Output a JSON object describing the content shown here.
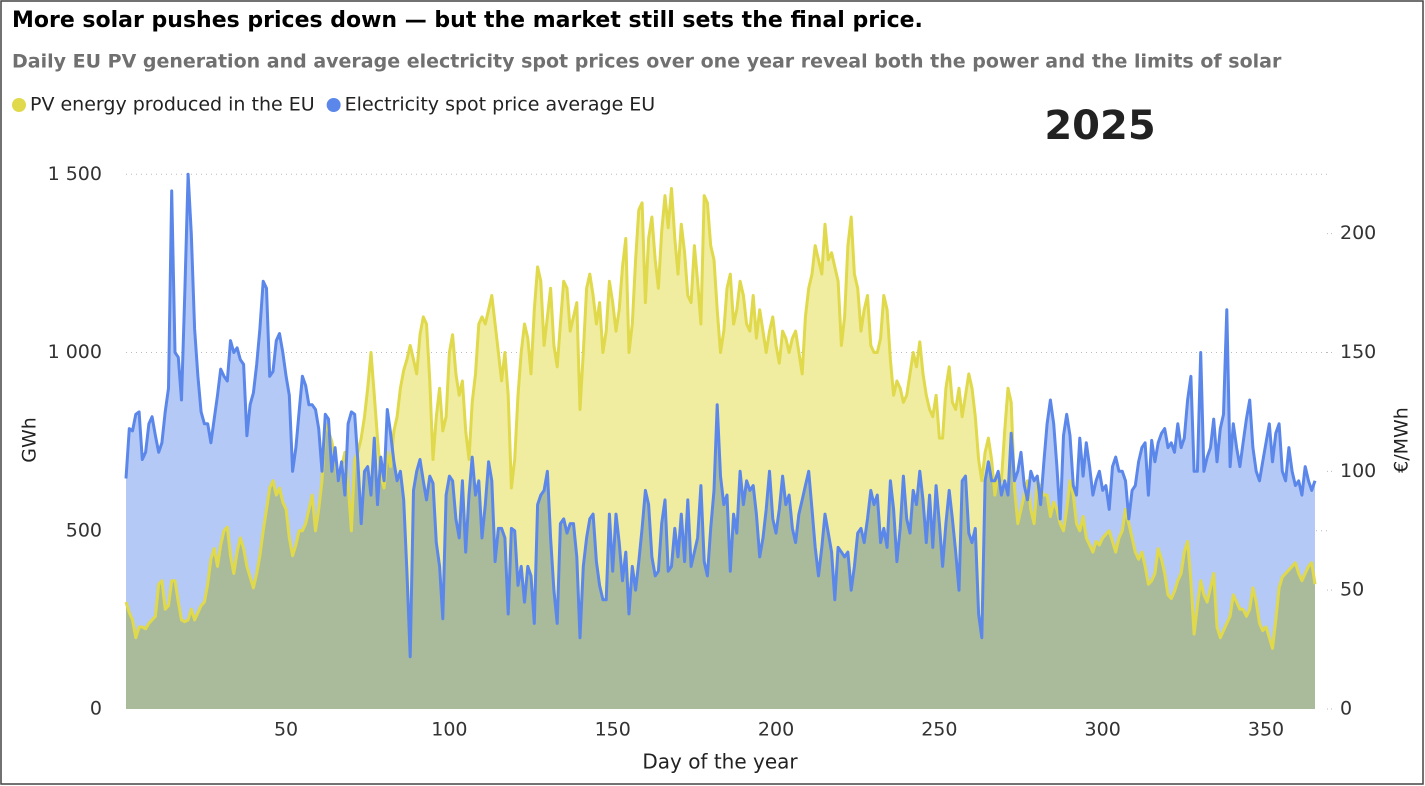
{
  "chart_data": {
    "type": "area",
    "title": "More solar pushes prices down — but the market still sets the final price.",
    "subtitle": "Daily EU PV generation and average electricity spot prices over one year reveal both the power and the limits of solar",
    "annotation": "2025",
    "x_label": "Day of the year",
    "y_label": "GWh",
    "y2_label": "€/MWh",
    "xlim": [
      1,
      365
    ],
    "xticks": [
      50,
      100,
      150,
      200,
      250,
      300,
      350
    ],
    "ylim": [
      0,
      1540
    ],
    "yticks": [
      0,
      500,
      {
        "value": 1000,
        "label": "1 000"
      },
      {
        "value": 1500,
        "label": "1 500"
      }
    ],
    "y2lim": [
      0,
      231
    ],
    "y2ticks": [
      0,
      50,
      100,
      150,
      200
    ],
    "grid": true,
    "legend": "top-left",
    "x": [
      1,
      2,
      3,
      4,
      5,
      6,
      7,
      8,
      9,
      10,
      11,
      12,
      13,
      14,
      15,
      16,
      17,
      18,
      19,
      20,
      21,
      22,
      23,
      24,
      25,
      26,
      27,
      28,
      29,
      30,
      31,
      32,
      33,
      34,
      35,
      36,
      37,
      38,
      39,
      40,
      41,
      42,
      43,
      44,
      45,
      46,
      47,
      48,
      49,
      50,
      51,
      52,
      53,
      54,
      55,
      56,
      57,
      58,
      59,
      60,
      61,
      62,
      63,
      64,
      65,
      66,
      67,
      68,
      69,
      70,
      71,
      72,
      73,
      74,
      75,
      76,
      77,
      78,
      79,
      80,
      81,
      82,
      83,
      84,
      85,
      86,
      87,
      88,
      89,
      90,
      91,
      92,
      93,
      94,
      95,
      96,
      97,
      98,
      99,
      100,
      101,
      102,
      103,
      104,
      105,
      106,
      107,
      108,
      109,
      110,
      111,
      112,
      113,
      114,
      115,
      116,
      117,
      118,
      119,
      120,
      121,
      122,
      123,
      124,
      125,
      126,
      127,
      128,
      129,
      130,
      131,
      132,
      133,
      134,
      135,
      136,
      137,
      138,
      139,
      140,
      141,
      142,
      143,
      144,
      145,
      146,
      147,
      148,
      149,
      150,
      151,
      152,
      153,
      154,
      155,
      156,
      157,
      158,
      159,
      160,
      161,
      162,
      163,
      164,
      165,
      166,
      167,
      168,
      169,
      170,
      171,
      172,
      173,
      174,
      175,
      176,
      177,
      178,
      179,
      180,
      181,
      182,
      183,
      184,
      185,
      186,
      187,
      188,
      189,
      190,
      191,
      192,
      193,
      194,
      195,
      196,
      197,
      198,
      199,
      200,
      201,
      202,
      203,
      204,
      205,
      206,
      207,
      208,
      209,
      210,
      211,
      212,
      213,
      214,
      215,
      216,
      217,
      218,
      219,
      220,
      221,
      222,
      223,
      224,
      225,
      226,
      227,
      228,
      229,
      230,
      231,
      232,
      233,
      234,
      235,
      236,
      237,
      238,
      239,
      240,
      241,
      242,
      243,
      244,
      245,
      246,
      247,
      248,
      249,
      250,
      251,
      252,
      253,
      254,
      255,
      256,
      257,
      258,
      259,
      260,
      261,
      262,
      263,
      264,
      265,
      266,
      267,
      268,
      269,
      270,
      271,
      272,
      273,
      274,
      275,
      276,
      277,
      278,
      279,
      280,
      281,
      282,
      283,
      284,
      285,
      286,
      287,
      288,
      289,
      290,
      291,
      292,
      293,
      294,
      295,
      296,
      297,
      298,
      299,
      300,
      301,
      302,
      303,
      304,
      305,
      306,
      307,
      308,
      309,
      310,
      311,
      312,
      313,
      314,
      315,
      316,
      317,
      318,
      319,
      320,
      321,
      322,
      323,
      324,
      325,
      326,
      327,
      328,
      329,
      330,
      331,
      332,
      333,
      334,
      335,
      336,
      337,
      338,
      339,
      340,
      341,
      342,
      343,
      344,
      345,
      346,
      347,
      348,
      349,
      350,
      351,
      352,
      353,
      354,
      355,
      356,
      357,
      358,
      359,
      360,
      361,
      362,
      363,
      364,
      365
    ],
    "series": [
      {
        "name": "PV energy produced in the EU",
        "color": "#e0d94c",
        "fill": "#f0eda0",
        "axis": "y",
        "values": [
          300,
          270,
          250,
          200,
          230,
          230,
          225,
          240,
          250,
          260,
          350,
          360,
          280,
          290,
          360,
          360,
          300,
          250,
          245,
          250,
          280,
          250,
          270,
          290,
          300,
          350,
          420,
          450,
          400,
          460,
          500,
          510,
          430,
          380,
          440,
          480,
          450,
          400,
          370,
          340,
          380,
          430,
          500,
          560,
          620,
          640,
          600,
          620,
          580,
          560,
          480,
          430,
          460,
          500,
          500,
          520,
          560,
          600,
          500,
          560,
          640,
          800,
          780,
          750,
          700,
          640,
          680,
          720,
          630,
          500,
          700,
          720,
          760,
          820,
          900,
          1000,
          880,
          760,
          650,
          620,
          720,
          680,
          780,
          820,
          900,
          950,
          980,
          1020,
          980,
          940,
          1050,
          1100,
          1080,
          920,
          700,
          820,
          900,
          780,
          820,
          1000,
          1050,
          940,
          880,
          920,
          780,
          700,
          860,
          940,
          1080,
          1100,
          1080,
          1120,
          1160,
          1080,
          1000,
          920,
          1000,
          880,
          620,
          700,
          880,
          1000,
          1080,
          1040,
          940,
          1120,
          1240,
          1200,
          1020,
          1100,
          1180,
          1020,
          960,
          1080,
          1200,
          1180,
          1060,
          1100,
          1140,
          840,
          1000,
          1180,
          1220,
          1160,
          1080,
          1140,
          1000,
          1060,
          1200,
          1140,
          1060,
          1120,
          1240,
          1320,
          1000,
          1080,
          1260,
          1400,
          1420,
          1140,
          1320,
          1380,
          1260,
          1180,
          1340,
          1440,
          1350,
          1460,
          1320,
          1220,
          1360,
          1280,
          1160,
          1140,
          1300,
          1200,
          1080,
          1440,
          1420,
          1300,
          1260,
          1120,
          1000,
          1060,
          1180,
          1220,
          1080,
          1120,
          1200,
          1160,
          1080,
          1060,
          1160,
          1040,
          1120,
          1060,
          1000,
          1060,
          1100,
          1020,
          970,
          1060,
          1040,
          1000,
          1040,
          1060,
          1000,
          940,
          1100,
          1180,
          1220,
          1300,
          1260,
          1220,
          1360,
          1260,
          1280,
          1240,
          1200,
          1020,
          1100,
          1300,
          1380,
          1220,
          1180,
          1060,
          1120,
          1160,
          1020,
          1000,
          1000,
          1040,
          1160,
          1120,
          980,
          880,
          920,
          900,
          860,
          880,
          940,
          1000,
          960,
          1030,
          940,
          880,
          840,
          820,
          880,
          760,
          760,
          900,
          960,
          860,
          840,
          900,
          820,
          880,
          940,
          900,
          820,
          700,
          640,
          720,
          760,
          700,
          600,
          660,
          640,
          780,
          900,
          860,
          620,
          520,
          560,
          600,
          640,
          560,
          520,
          640,
          620,
          600,
          600,
          540,
          580,
          560,
          520,
          500,
          560,
          640,
          600,
          520,
          500,
          540,
          480,
          460,
          440,
          470,
          460,
          480,
          490,
          500,
          470,
          440,
          480,
          500,
          560,
          520,
          480,
          440,
          420,
          440,
          400,
          350,
          360,
          380,
          450,
          420,
          380,
          320,
          310,
          330,
          360,
          380,
          440,
          470,
          360,
          210,
          290,
          360,
          320,
          300,
          340,
          380,
          230,
          200,
          220,
          240,
          260,
          320,
          300,
          280,
          280,
          260,
          280,
          340,
          300,
          240,
          220,
          230,
          200,
          170,
          250,
          340,
          370,
          380,
          390,
          400,
          410,
          380,
          360,
          380,
          400,
          410,
          350
        ]
      },
      {
        "name": "Electricity spot price average EU",
        "color": "#5b87ea",
        "fill": "#b4c9f5",
        "axis": "y2",
        "values": [
          97,
          118,
          117,
          124,
          125,
          105,
          108,
          120,
          123,
          115,
          108,
          112,
          125,
          135,
          218,
          150,
          148,
          130,
          175,
          225,
          200,
          160,
          140,
          125,
          120,
          120,
          112,
          122,
          132,
          143,
          140,
          138,
          155,
          150,
          152,
          147,
          145,
          115,
          128,
          133,
          145,
          160,
          180,
          177,
          140,
          142,
          155,
          158,
          150,
          140,
          132,
          100,
          110,
          125,
          140,
          136,
          128,
          128,
          126,
          118,
          100,
          124,
          122,
          100,
          110,
          96,
          104,
          90,
          120,
          125,
          124,
          104,
          78,
          100,
          102,
          90,
          114,
          86,
          106,
          96,
          126,
          116,
          104,
          96,
          100,
          88,
          58,
          22,
          92,
          100,
          105,
          96,
          88,
          98,
          95,
          70,
          60,
          38,
          90,
          98,
          96,
          80,
          72,
          96,
          66,
          90,
          106,
          90,
          96,
          72,
          86,
          104,
          96,
          62,
          76,
          76,
          72,
          40,
          76,
          75,
          52,
          60,
          45,
          60,
          56,
          36,
          86,
          90,
          92,
          100,
          72,
          50,
          36,
          78,
          80,
          74,
          78,
          78,
          64,
          30,
          60,
          72,
          80,
          82,
          62,
          52,
          46,
          46,
          82,
          58,
          82,
          70,
          54,
          66,
          40,
          60,
          50,
          62,
          76,
          92,
          86,
          64,
          56,
          58,
          78,
          88,
          58,
          60,
          76,
          64,
          82,
          62,
          88,
          60,
          66,
          72,
          94,
          62,
          56,
          76,
          92,
          128,
          98,
          86,
          90,
          58,
          82,
          74,
          100,
          86,
          96,
          92,
          94,
          82,
          64,
          72,
          84,
          100,
          80,
          74,
          84,
          98,
          86,
          90,
          76,
          70,
          82,
          88,
          94,
          100,
          84,
          68,
          56,
          68,
          82,
          74,
          66,
          46,
          68,
          66,
          64,
          66,
          50,
          60,
          74,
          76,
          70,
          80,
          92,
          86,
          90,
          70,
          76,
          68,
          96,
          84,
          62,
          76,
          98,
          80,
          74,
          92,
          86,
          100,
          88,
          70,
          90,
          68,
          94,
          78,
          60,
          78,
          92,
          80,
          66,
          50,
          96,
          98,
          74,
          70,
          76,
          40,
          30,
          96,
          104,
          96,
          96,
          100,
          90,
          96,
          90,
          116,
          96,
          100,
          108,
          94,
          88,
          100,
          96,
          98,
          86,
          104,
          120,
          130,
          120,
          102,
          80,
          115,
          124,
          115,
          94,
          90,
          114,
          98,
          112,
          102,
          90,
          96,
          100,
          92,
          94,
          84,
          102,
          106,
          100,
          100,
          96,
          80,
          92,
          94,
          104,
          110,
          112,
          90,
          113,
          104,
          112,
          116,
          118,
          110,
          112,
          108,
          120,
          110,
          114,
          130,
          140,
          100,
          100,
          150,
          100,
          106,
          110,
          122,
          104,
          118,
          124,
          168,
          102,
          120,
          110,
          102,
          112,
          122,
          130,
          110,
          100,
          96,
          104,
          112,
          120,
          104,
          116,
          120,
          100,
          96,
          110,
          100,
          94,
          96,
          90,
          102,
          96,
          92,
          96
        ]
      }
    ]
  }
}
